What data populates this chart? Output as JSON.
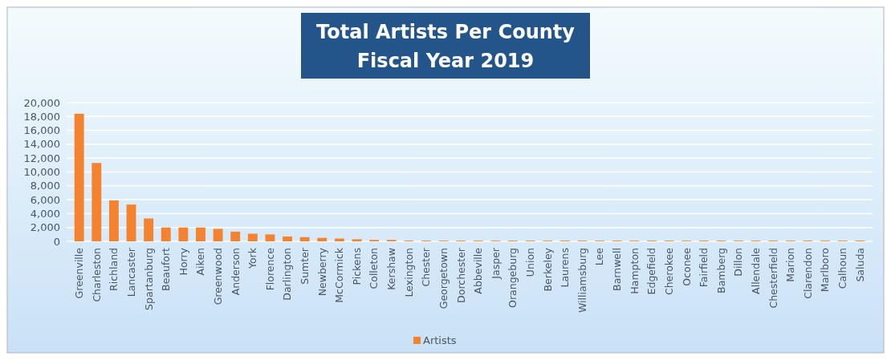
{
  "chart_data": {
    "type": "bar",
    "title": "Total Artists Per County\nFiscal Year 2019",
    "categories": [
      "Greenville",
      "Charleston",
      "Richland",
      "Lancaster",
      "Spartanburg",
      "Beaufort",
      "Horry",
      "Aiken",
      "Greenwood",
      "Anderson",
      "York",
      "Florence",
      "Darlington",
      "Sumter",
      "Newberry",
      "McCormick",
      "Pickens",
      "Colleton",
      "Kershaw",
      "Lexington",
      "Chester",
      "Georgetown",
      "Dorchester",
      "Abbeville",
      "Jasper",
      "Orangeburg",
      "Union",
      "Berkeley",
      "Laurens",
      "Williamsburg",
      "Lee",
      "Barnwell",
      "Hampton",
      "Edgefield",
      "Cherokee",
      "Oconee",
      "Fairfield",
      "Bamberg",
      "Dillon",
      "Allendale",
      "Chesterfield",
      "Marion",
      "Clarendon",
      "Marlboro",
      "Calhoun",
      "Saluda"
    ],
    "series": [
      {
        "name": "Artists",
        "color": "#f5822e",
        "values": [
          18400,
          11300,
          5900,
          5300,
          3300,
          2000,
          2000,
          2000,
          1800,
          1400,
          1100,
          1000,
          700,
          600,
          500,
          400,
          300,
          200,
          200,
          100,
          100,
          100,
          100,
          100,
          100,
          100,
          100,
          100,
          100,
          100,
          100,
          100,
          100,
          100,
          100,
          100,
          100,
          100,
          100,
          100,
          100,
          100,
          100,
          100,
          100,
          100
        ]
      }
    ],
    "ylim": [
      0,
      20000
    ],
    "yticks": [
      {
        "value": 0,
        "label": "0"
      },
      {
        "value": 2000,
        "label": "2,000"
      },
      {
        "value": 4000,
        "label": "4,000"
      },
      {
        "value": 6000,
        "label": "6,000"
      },
      {
        "value": 8000,
        "label": "8,000"
      },
      {
        "value": 10000,
        "label": "10,000"
      },
      {
        "value": 12000,
        "label": "12,000"
      },
      {
        "value": 14000,
        "label": "14,000"
      },
      {
        "value": 16000,
        "label": "16,000"
      },
      {
        "value": 18000,
        "label": "18,000"
      },
      {
        "value": 20000,
        "label": "20,000"
      }
    ],
    "grid": "y",
    "legend": "bottom"
  }
}
